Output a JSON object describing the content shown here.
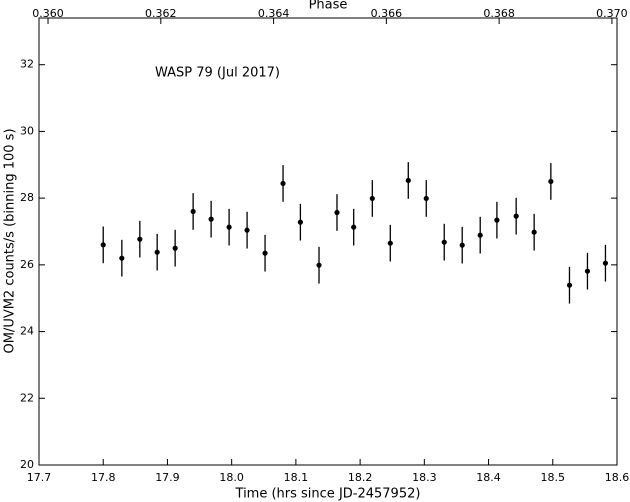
{
  "chart_data": {
    "type": "scatter",
    "annotation": "WASP 79 (Jul 2017)",
    "xlabel": "Time (hrs since JD-2457952)",
    "ylabel": "OM/UVM2 counts/s (binning 100 s)",
    "x2label": "Phase",
    "x": [
      17.8,
      17.829,
      17.857,
      17.884,
      17.912,
      17.94,
      17.968,
      17.996,
      18.024,
      18.052,
      18.08,
      18.107,
      18.136,
      18.164,
      18.19,
      18.219,
      18.247,
      18.275,
      18.303,
      18.331,
      18.359,
      18.387,
      18.413,
      18.443,
      18.471,
      18.497,
      18.526,
      18.554,
      18.582
    ],
    "values": [
      26.6,
      26.2,
      26.77,
      26.38,
      26.5,
      27.6,
      27.37,
      27.13,
      27.04,
      26.35,
      28.44,
      27.28,
      25.99,
      27.57,
      27.13,
      27.99,
      26.65,
      28.53,
      27.99,
      26.68,
      26.59,
      26.89,
      27.34,
      27.46,
      26.98,
      28.5,
      25.39,
      25.81,
      26.05
    ],
    "errors": [
      0.55,
      0.55,
      0.55,
      0.55,
      0.55,
      0.55,
      0.55,
      0.55,
      0.55,
      0.55,
      0.55,
      0.55,
      0.55,
      0.55,
      0.55,
      0.55,
      0.55,
      0.55,
      0.55,
      0.55,
      0.55,
      0.55,
      0.55,
      0.55,
      0.55,
      0.55,
      0.55,
      0.55,
      0.55
    ],
    "color": "#000000",
    "xlim": [
      17.7,
      18.6
    ],
    "xticks": [
      17.7,
      17.8,
      17.9,
      {
        "value": 18.0,
        "label": "18.0"
      },
      18.1,
      18.2,
      18.3,
      18.4,
      18.5,
      18.6
    ],
    "ylim": [
      20,
      33.4
    ],
    "yticks": [
      20,
      22,
      24,
      26,
      28,
      30,
      32
    ],
    "x2lim": [
      0.35984,
      0.37009
    ],
    "x2ticks": [
      {
        "value": 0.36,
        "label": "0.360"
      },
      {
        "value": 0.362,
        "label": "0.362"
      },
      {
        "value": 0.364,
        "label": "0.364"
      },
      {
        "value": 0.366,
        "label": "0.366"
      },
      {
        "value": 0.368,
        "label": "0.368"
      },
      {
        "value": 0.37,
        "label": "0.370"
      }
    ]
  }
}
